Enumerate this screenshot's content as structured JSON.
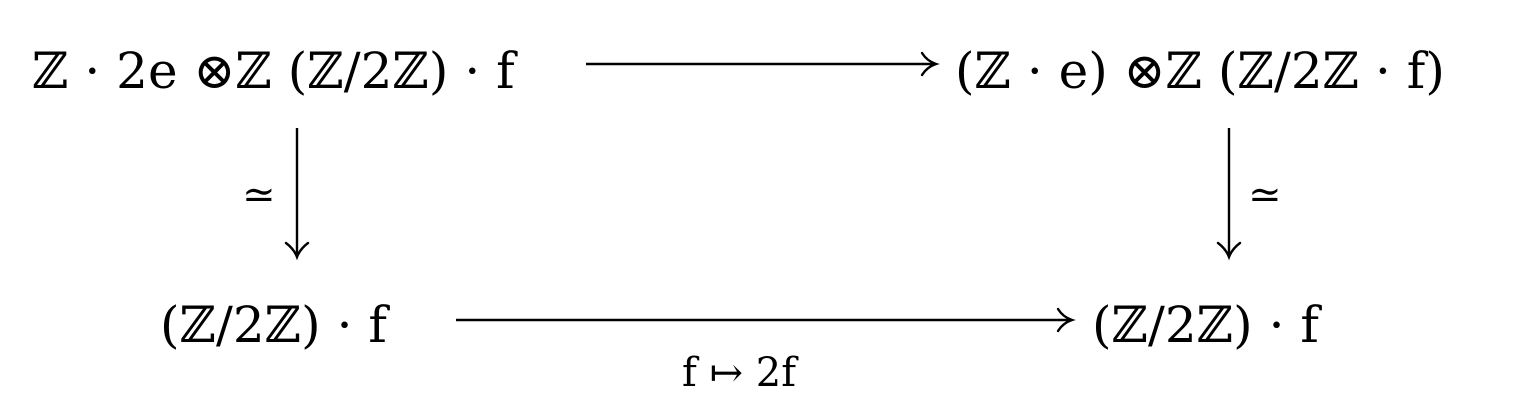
{
  "diagram": {
    "nodes": {
      "top_left": "ℤ · 2e ⊗ℤ (ℤ/2ℤ) · f",
      "top_right": "(ℤ · e) ⊗ℤ (ℤ/2ℤ · f)",
      "bottom_left": "(ℤ/2ℤ) · f",
      "bottom_right": "(ℤ/2ℤ) · f"
    },
    "edges": {
      "top": "",
      "left": "≃",
      "right": "≃",
      "bottom": "f ↦ 2f"
    }
  }
}
